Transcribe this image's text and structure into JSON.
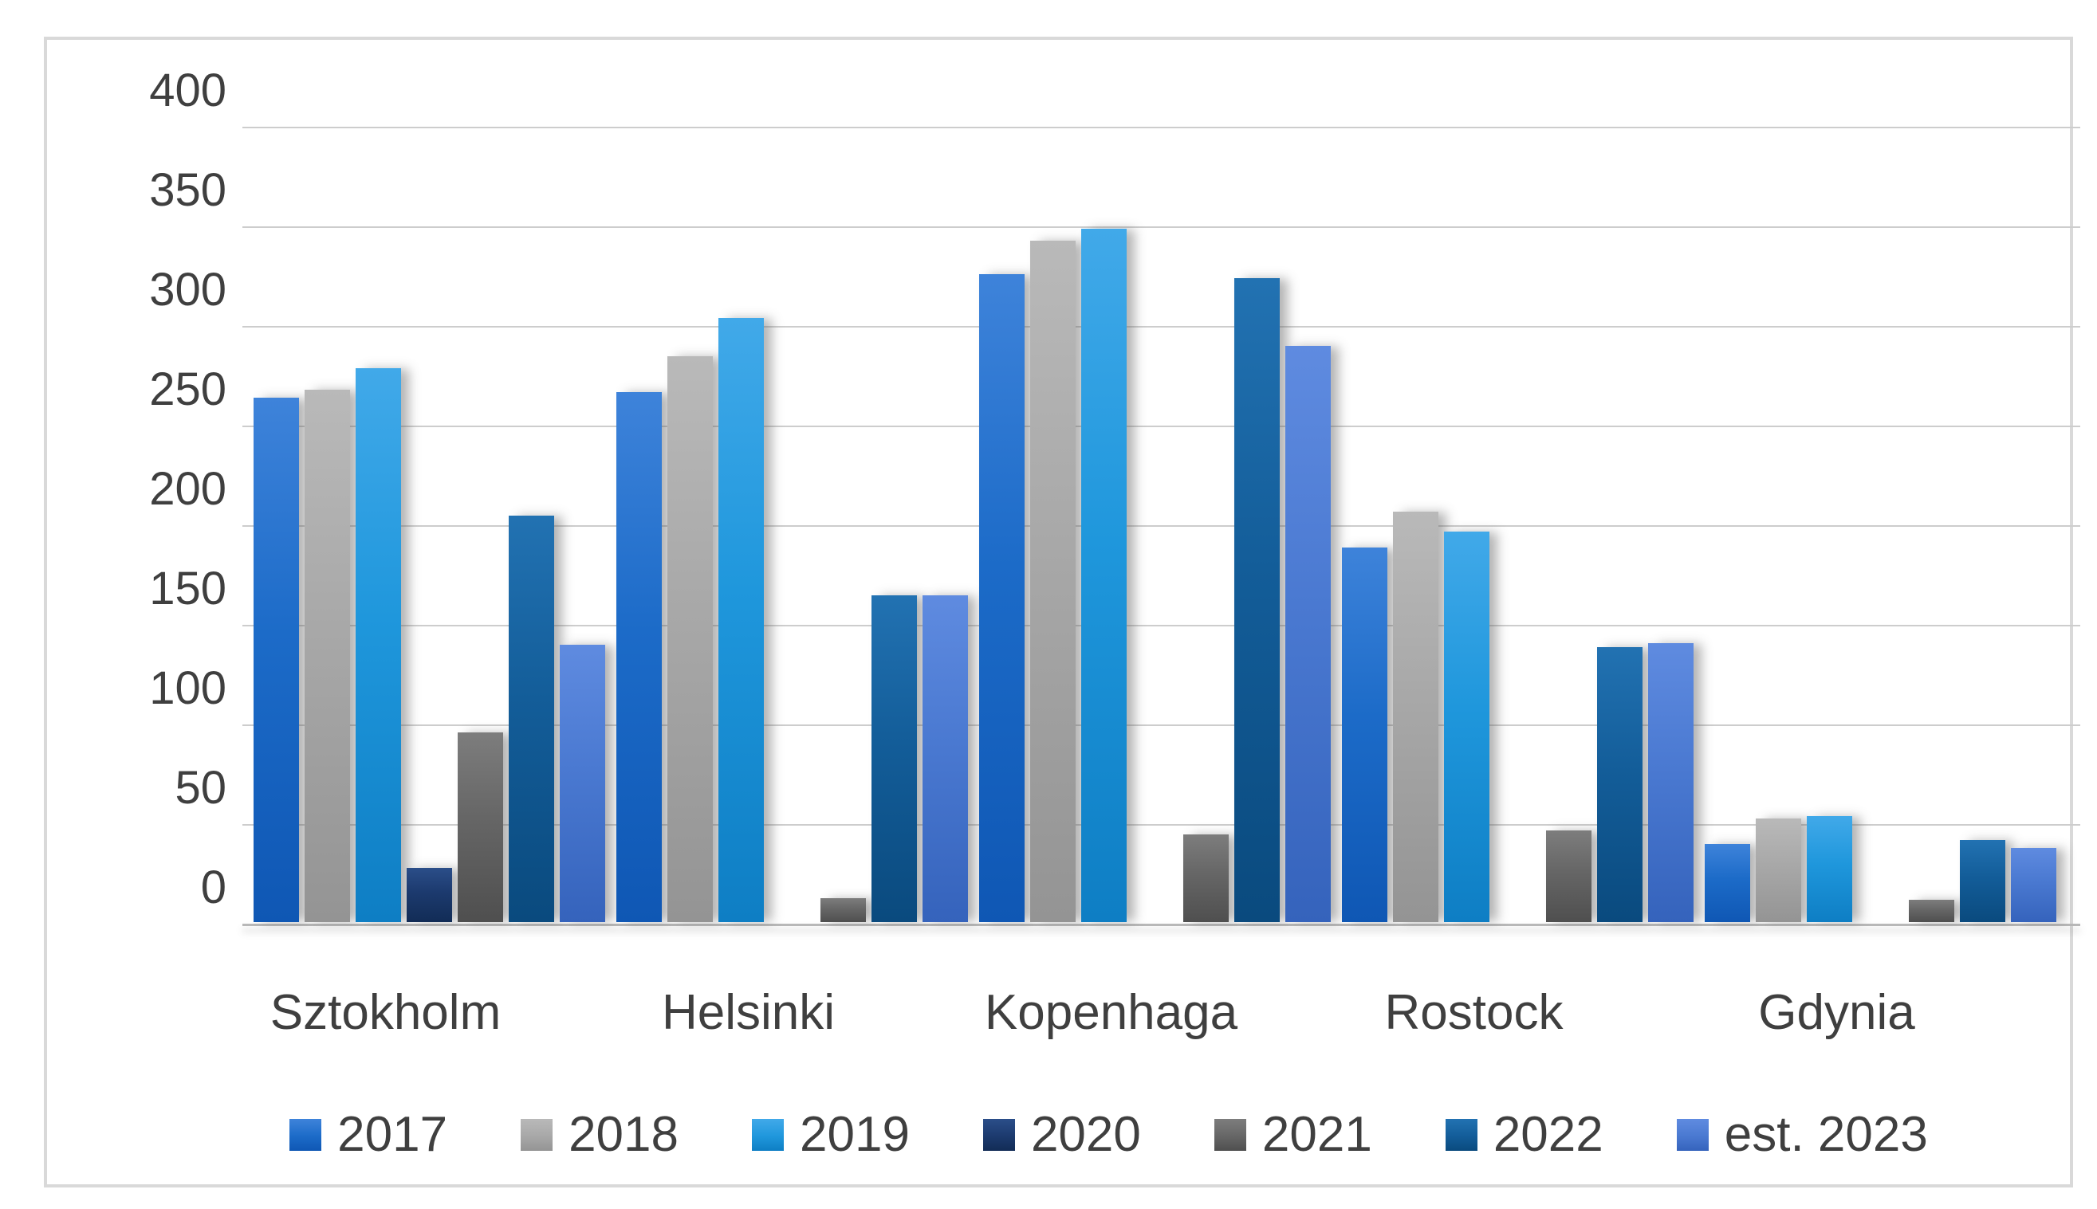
{
  "chart_data": {
    "type": "bar",
    "title": "",
    "xlabel": "",
    "ylabel": "",
    "categories": [
      "Sztokholm",
      "Helsinki",
      "Kopenhaga",
      "Rostock",
      "Gdynia"
    ],
    "series": [
      {
        "name": "2017",
        "color": "#1C6BC8",
        "gradient_top": "#3E83DA",
        "gradient_bottom": "#0F57B4",
        "values": [
          263,
          266,
          325,
          188,
          39
        ]
      },
      {
        "name": "2018",
        "color": "#A8A8A8",
        "gradient_top": "#B9B9B9",
        "gradient_bottom": "#949494",
        "values": [
          267,
          284,
          342,
          206,
          52
        ]
      },
      {
        "name": "2019",
        "color": "#1F97DC",
        "gradient_top": "#41A9E9",
        "gradient_bottom": "#0E7EC4",
        "values": [
          278,
          303,
          348,
          196,
          53
        ]
      },
      {
        "name": "2020",
        "color": "#1C3A6E",
        "gradient_top": "#2B4E89",
        "gradient_bottom": "#122C56",
        "values": [
          27,
          0,
          0,
          0,
          0
        ]
      },
      {
        "name": "2021",
        "color": "#666666",
        "gradient_top": "#7D7D7D",
        "gradient_bottom": "#4F4F4F",
        "values": [
          95,
          12,
          44,
          46,
          11
        ]
      },
      {
        "name": "2022",
        "color": "#135D99",
        "gradient_top": "#2272B2",
        "gradient_bottom": "#0A4A7E",
        "values": [
          204,
          164,
          323,
          138,
          41
        ]
      },
      {
        "name": "est. 2023",
        "color": "#4A79D1",
        "gradient_top": "#5F8BE0",
        "gradient_bottom": "#3563BC",
        "values": [
          139,
          164,
          289,
          140,
          37
        ]
      }
    ],
    "ylim": [
      0,
      400
    ],
    "ytick_step": 50,
    "yticks": [
      "400",
      "350",
      "300",
      "250",
      "200",
      "150",
      "100",
      "50",
      "0"
    ],
    "grid": true,
    "legend_position": "bottom",
    "frame_color": "#D9D9D9",
    "gridline_color": "#CDCDCD",
    "text_color": "#3F3F3F"
  }
}
